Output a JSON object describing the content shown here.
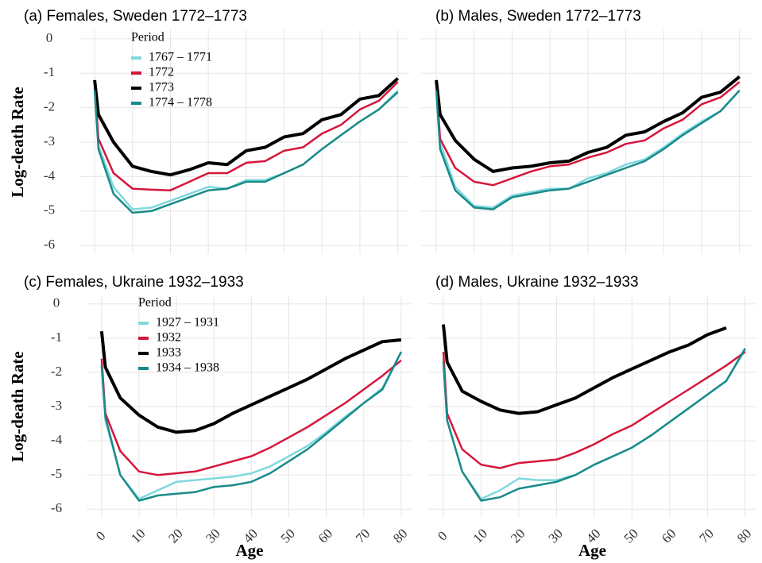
{
  "chart_data": [
    {
      "type": "line",
      "title": "(a) Females, Sweden 1772–1773",
      "ylabel": "Log-death Rate",
      "legend_title": "Period",
      "legend": "upper left",
      "x": [
        0,
        1,
        5,
        10,
        15,
        20,
        25,
        30,
        35,
        40,
        45,
        50,
        55,
        60,
        65,
        70,
        75,
        80
      ],
      "series": [
        {
          "name": "1767 – 1771",
          "color": "#7fd8df",
          "values": [
            -1.4,
            -3.1,
            -4.3,
            -4.95,
            -4.9,
            -4.7,
            -4.5,
            -4.3,
            -4.35,
            -4.1,
            -4.1,
            -3.9,
            -3.65,
            -3.2,
            -2.8,
            -2.4,
            -2.05,
            -1.5
          ]
        },
        {
          "name": "1772",
          "color": "#d6163c",
          "values": [
            -1.3,
            -2.9,
            -3.9,
            -4.35,
            -4.38,
            -4.4,
            -4.15,
            -3.9,
            -3.9,
            -3.6,
            -3.55,
            -3.25,
            -3.15,
            -2.75,
            -2.5,
            -2.05,
            -1.8,
            -1.25
          ]
        },
        {
          "name": "1773",
          "color": "#000000",
          "values": [
            -1.2,
            -2.2,
            -3.0,
            -3.7,
            -3.85,
            -3.95,
            -3.8,
            -3.6,
            -3.65,
            -3.25,
            -3.15,
            -2.85,
            -2.75,
            -2.35,
            -2.2,
            -1.75,
            -1.65,
            -1.15
          ]
        },
        {
          "name": "1774 – 1778",
          "color": "#1a8a8a",
          "values": [
            -1.5,
            -3.2,
            -4.5,
            -5.05,
            -5.0,
            -4.8,
            -4.6,
            -4.4,
            -4.35,
            -4.15,
            -4.15,
            -3.9,
            -3.65,
            -3.2,
            -2.8,
            -2.4,
            -2.05,
            -1.55
          ]
        }
      ],
      "xlim": [
        -4,
        83
      ],
      "ylim": [
        -6.25,
        0.25
      ],
      "xticks": [
        0,
        10,
        20,
        30,
        40,
        50,
        60,
        70,
        80
      ],
      "yticks": [
        0,
        -1,
        -2,
        -3,
        -4,
        -5,
        -6
      ],
      "xtick_labels": false,
      "ytick_labels": true,
      "grid": true
    },
    {
      "type": "line",
      "title": "(b) Males, Sweden 1772–1773",
      "x": [
        0,
        1,
        5,
        10,
        15,
        20,
        25,
        30,
        35,
        40,
        45,
        50,
        55,
        60,
        65,
        70,
        75,
        80
      ],
      "series": [
        {
          "color": "#7fd8df",
          "values": [
            -1.4,
            -3.0,
            -4.3,
            -4.85,
            -4.9,
            -4.55,
            -4.45,
            -4.35,
            -4.35,
            -4.05,
            -3.9,
            -3.65,
            -3.5,
            -3.15,
            -2.75,
            -2.4,
            -2.1,
            -1.5
          ]
        },
        {
          "color": "#d6163c",
          "values": [
            -1.3,
            -2.9,
            -3.75,
            -4.15,
            -4.25,
            -4.05,
            -3.85,
            -3.7,
            -3.65,
            -3.45,
            -3.3,
            -3.05,
            -2.95,
            -2.6,
            -2.35,
            -1.9,
            -1.7,
            -1.25
          ]
        },
        {
          "color": "#000000",
          "values": [
            -1.2,
            -2.2,
            -2.95,
            -3.5,
            -3.85,
            -3.75,
            -3.7,
            -3.6,
            -3.55,
            -3.3,
            -3.15,
            -2.8,
            -2.7,
            -2.4,
            -2.15,
            -1.7,
            -1.55,
            -1.1
          ]
        },
        {
          "color": "#1a8a8a",
          "values": [
            -1.5,
            -3.2,
            -4.4,
            -4.9,
            -4.95,
            -4.6,
            -4.5,
            -4.4,
            -4.35,
            -4.15,
            -3.95,
            -3.75,
            -3.55,
            -3.2,
            -2.8,
            -2.45,
            -2.1,
            -1.5
          ]
        }
      ],
      "xlim": [
        -4,
        83
      ],
      "ylim": [
        -6.25,
        0.25
      ],
      "xticks": [
        0,
        10,
        20,
        30,
        40,
        50,
        60,
        70,
        80
      ],
      "yticks": [
        0,
        -1,
        -2,
        -3,
        -4,
        -5,
        -6
      ],
      "xtick_labels": false,
      "ytick_labels": false,
      "grid": true
    },
    {
      "type": "line",
      "title": "(c) Females, Ukraine 1932–1933",
      "ylabel": "Log-death Rate",
      "xlabel": "Age",
      "legend_title": "Period",
      "legend": "upper left",
      "x": [
        0,
        1,
        5,
        10,
        15,
        20,
        25,
        30,
        35,
        40,
        45,
        50,
        55,
        60,
        65,
        70,
        75,
        80
      ],
      "series": [
        {
          "name": "1927 – 1931",
          "color": "#7fd8df",
          "values": [
            -1.7,
            -3.4,
            -5.0,
            -5.7,
            -5.45,
            -5.2,
            -5.15,
            -5.1,
            -5.05,
            -4.95,
            -4.75,
            -4.45,
            -4.15,
            -3.75,
            -3.3,
            -2.9,
            -2.45,
            -1.4
          ]
        },
        {
          "name": "1932",
          "color": "#d6163c",
          "values": [
            -1.6,
            -3.2,
            -4.3,
            -4.9,
            -5.0,
            -4.95,
            -4.9,
            -4.75,
            -4.6,
            -4.45,
            -4.2,
            -3.9,
            -3.6,
            -3.25,
            -2.9,
            -2.5,
            -2.1,
            -1.65
          ]
        },
        {
          "name": "1933",
          "color": "#000000",
          "values": [
            -0.8,
            -1.85,
            -2.75,
            -3.25,
            -3.6,
            -3.75,
            -3.7,
            -3.5,
            -3.2,
            -2.95,
            -2.7,
            -2.45,
            -2.2,
            -1.9,
            -1.6,
            -1.35,
            -1.1,
            -1.05
          ]
        },
        {
          "name": "1934 – 1938",
          "color": "#1a8a8a",
          "values": [
            -1.8,
            -3.3,
            -5.0,
            -5.75,
            -5.6,
            -5.55,
            -5.5,
            -5.35,
            -5.3,
            -5.2,
            -4.95,
            -4.6,
            -4.25,
            -3.8,
            -3.35,
            -2.9,
            -2.5,
            -1.4
          ]
        }
      ],
      "xlim": [
        -4,
        83
      ],
      "ylim": [
        -6.25,
        0.25
      ],
      "xticks": [
        0,
        10,
        20,
        30,
        40,
        50,
        60,
        70,
        80
      ],
      "yticks": [
        0,
        -1,
        -2,
        -3,
        -4,
        -5,
        -6
      ],
      "xtick_labels": true,
      "ytick_labels": true,
      "grid": true
    },
    {
      "type": "line",
      "title": "(d) Males, Ukraine 1932–1933",
      "xlabel": "Age",
      "x": [
        0,
        1,
        5,
        10,
        15,
        20,
        25,
        30,
        35,
        40,
        45,
        50,
        55,
        60,
        65,
        70,
        75,
        80
      ],
      "series": [
        {
          "color": "#7fd8df",
          "values": [
            -1.6,
            -3.4,
            -4.9,
            -5.7,
            -5.45,
            -5.1,
            -5.15,
            -5.15,
            -5.0,
            -4.7,
            -4.45,
            -4.2,
            -3.85,
            -3.45,
            -3.05,
            -2.65,
            -2.25,
            -1.35
          ]
        },
        {
          "color": "#d6163c",
          "values": [
            -1.4,
            -3.2,
            -4.25,
            -4.7,
            -4.8,
            -4.65,
            -4.6,
            -4.55,
            -4.35,
            -4.1,
            -3.8,
            -3.55,
            -3.2,
            -2.85,
            -2.5,
            -2.15,
            -1.8,
            -1.4
          ]
        },
        {
          "color": "#000000",
          "values": [
            -0.6,
            -1.7,
            -2.55,
            -2.85,
            -3.1,
            -3.2,
            -3.15,
            -2.95,
            -2.75,
            -2.45,
            -2.15,
            -1.9,
            -1.65,
            -1.4,
            -1.2,
            -0.9,
            -0.7,
            null
          ]
        },
        {
          "color": "#1a8a8a",
          "values": [
            -1.7,
            -3.4,
            -4.9,
            -5.75,
            -5.65,
            -5.4,
            -5.3,
            -5.2,
            -5.0,
            -4.7,
            -4.45,
            -4.2,
            -3.85,
            -3.45,
            -3.05,
            -2.65,
            -2.25,
            -1.3
          ]
        }
      ],
      "xlim": [
        -4,
        83
      ],
      "ylim": [
        -6.25,
        0.25
      ],
      "xticks": [
        0,
        10,
        20,
        30,
        40,
        50,
        60,
        70,
        80
      ],
      "yticks": [
        0,
        -1,
        -2,
        -3,
        -4,
        -5,
        -6
      ],
      "xtick_labels": true,
      "ytick_labels": false,
      "grid": true
    }
  ]
}
